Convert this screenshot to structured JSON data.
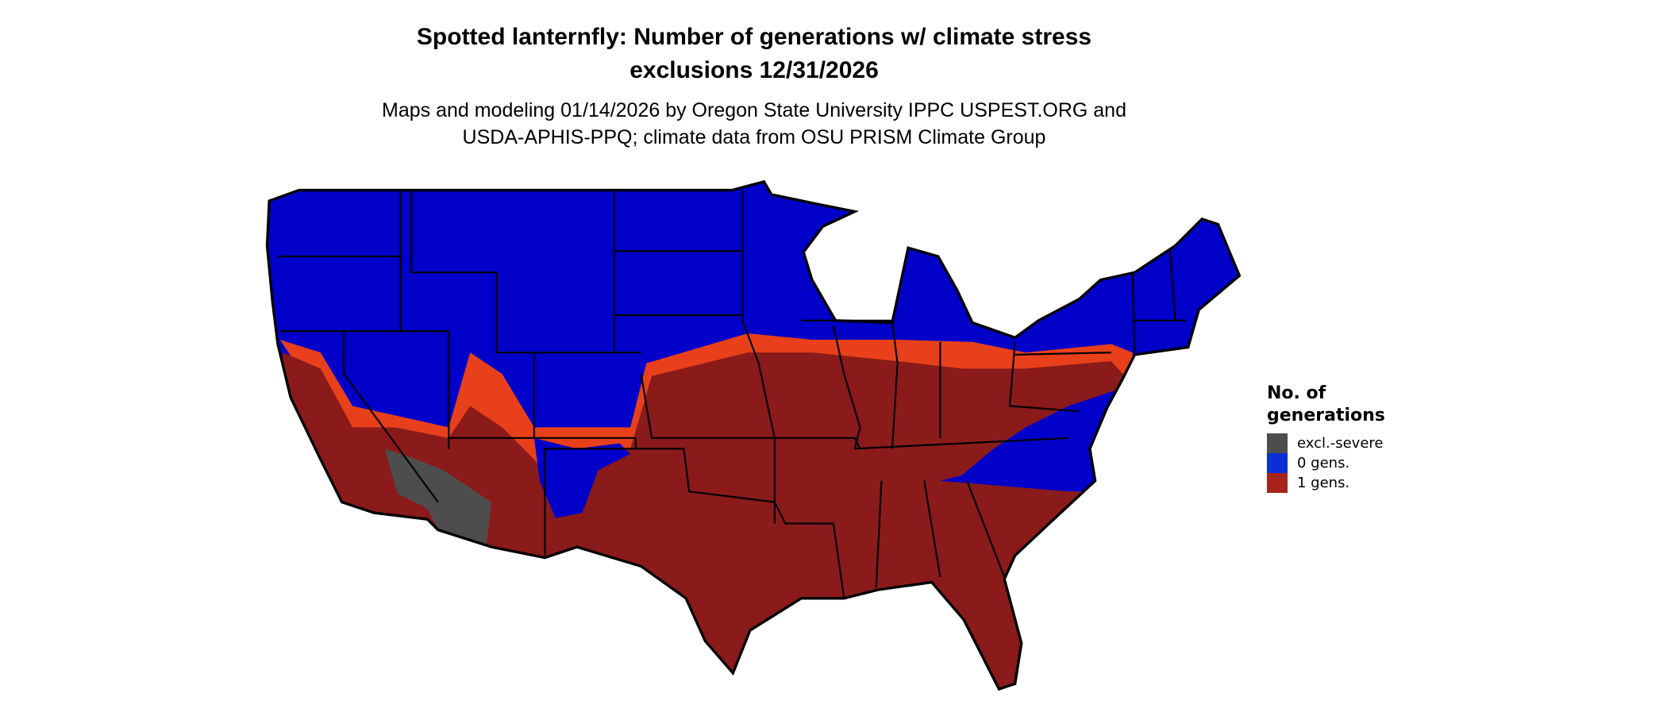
{
  "title_lines": [
    "Spotted lanternfly: Number of generations w/ climate stress",
    "exclusions 12/31/2026"
  ],
  "subtitle_lines": [
    "Maps and modeling 01/14/2026 by Oregon State University IPPC USPEST.ORG and",
    "USDA-APHIS-PPQ; climate data from OSU PRISM Climate Group"
  ],
  "legend": {
    "title_lines": [
      "No. of",
      "generations"
    ],
    "items": [
      {
        "label": "excl.-severe",
        "color": "#4d4d4d"
      },
      {
        "label": "0 gens.",
        "color": "#0a2fd6"
      },
      {
        "label": "1 gens.",
        "color": "#a8241a"
      }
    ]
  },
  "map_colors": {
    "zero_gens": "#0000c8",
    "one_gen": "#8b1a1a",
    "excluded": "#4d4d4d",
    "transition": "#e8401a",
    "borders": "#000000"
  }
}
